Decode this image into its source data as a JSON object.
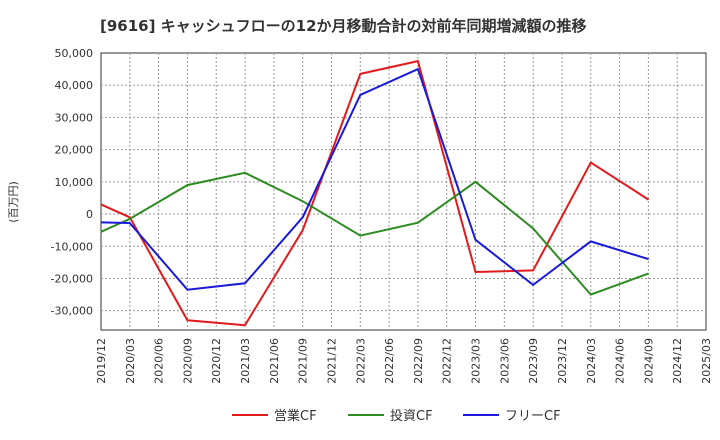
{
  "chart_data": {
    "type": "line",
    "title": "[9616]  キャッシュフローの12か月移動合計の対前年同期増減額の推移",
    "ylabel": "(百万円)",
    "xlabel": "",
    "ylim": [
      -36000,
      50000
    ],
    "yticks": [
      50000,
      40000,
      30000,
      20000,
      10000,
      0,
      -10000,
      -20000,
      -30000
    ],
    "ytick_labels": [
      "50,000",
      "40,000",
      "30,000",
      "20,000",
      "10,000",
      "0",
      "-10,000",
      "-20,000",
      "-30,000"
    ],
    "x": [
      "2019/12",
      "2020/03",
      "2020/06",
      "2020/09",
      "2020/12",
      "2021/03",
      "2021/06",
      "2021/09",
      "2021/12",
      "2022/03",
      "2022/06",
      "2022/09",
      "2022/12",
      "2023/03",
      "2023/06",
      "2023/09",
      "2023/12",
      "2024/03",
      "2024/06",
      "2024/09",
      "2024/12",
      "2025/03"
    ],
    "grid": true,
    "legend_position": "bottom",
    "series": [
      {
        "name": "営業CF",
        "color": "#e31a1c",
        "points": [
          {
            "x": "2019/12",
            "y": 3000
          },
          {
            "x": "2020/03",
            "y": -1000
          },
          {
            "x": "2020/09",
            "y": -33000
          },
          {
            "x": "2021/03",
            "y": -34500
          },
          {
            "x": "2021/09",
            "y": -5000
          },
          {
            "x": "2022/03",
            "y": 43500
          },
          {
            "x": "2022/09",
            "y": 47500
          },
          {
            "x": "2023/03",
            "y": -18000
          },
          {
            "x": "2023/09",
            "y": -17500
          },
          {
            "x": "2024/03",
            "y": 16000
          },
          {
            "x": "2024/09",
            "y": 4500
          }
        ]
      },
      {
        "name": "投資CF",
        "color": "#2e8b22",
        "points": [
          {
            "x": "2019/12",
            "y": -5500
          },
          {
            "x": "2020/03",
            "y": -1500
          },
          {
            "x": "2020/09",
            "y": 9000
          },
          {
            "x": "2021/03",
            "y": 12800
          },
          {
            "x": "2021/09",
            "y": 4000
          },
          {
            "x": "2022/03",
            "y": -6700
          },
          {
            "x": "2022/09",
            "y": -2700
          },
          {
            "x": "2023/03",
            "y": 10000
          },
          {
            "x": "2023/09",
            "y": -4500
          },
          {
            "x": "2024/03",
            "y": -25000
          },
          {
            "x": "2024/09",
            "y": -18500
          }
        ]
      },
      {
        "name": "フリーCF",
        "color": "#1a1adb",
        "points": [
          {
            "x": "2019/12",
            "y": -2600
          },
          {
            "x": "2020/03",
            "y": -2800
          },
          {
            "x": "2020/09",
            "y": -23500
          },
          {
            "x": "2021/03",
            "y": -21500
          },
          {
            "x": "2021/09",
            "y": -1000
          },
          {
            "x": "2022/03",
            "y": 37000
          },
          {
            "x": "2022/09",
            "y": 45000
          },
          {
            "x": "2023/03",
            "y": -8000
          },
          {
            "x": "2023/09",
            "y": -22000
          },
          {
            "x": "2024/03",
            "y": -8500
          },
          {
            "x": "2024/09",
            "y": -14000
          }
        ]
      }
    ]
  }
}
